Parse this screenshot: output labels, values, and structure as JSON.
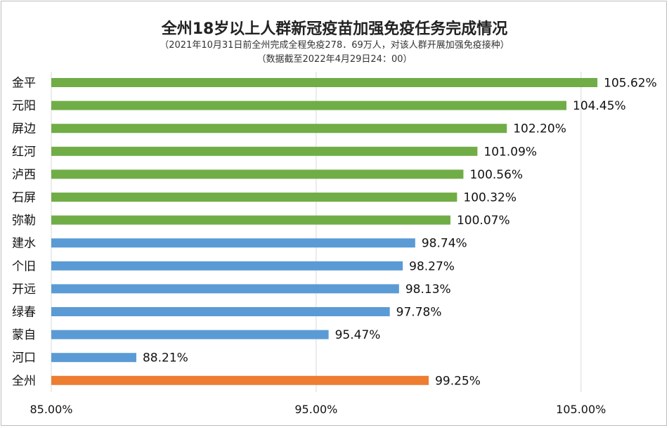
{
  "chart_data": {
    "type": "bar",
    "orientation": "horizontal",
    "title": "全州18岁以上人群新冠疫苗加强免疫任务完成情况",
    "subtitle_lines": [
      "（2021年10月31日前全州完成全程免疫278．69万人，对该人群开展加强免疫接种）",
      "（数据截至2022年4月29日24：00）"
    ],
    "categories": [
      "金平",
      "元阳",
      "屏边",
      "红河",
      "泸西",
      "石屏",
      "弥勒",
      "建水",
      "个旧",
      "开远",
      "绿春",
      "蒙自",
      "河口",
      "全州"
    ],
    "values": [
      105.62,
      104.45,
      102.2,
      101.09,
      100.56,
      100.32,
      100.07,
      98.74,
      98.27,
      98.13,
      97.78,
      95.47,
      88.21,
      99.25
    ],
    "value_labels": [
      "105.62%",
      "104.45%",
      "102.20%",
      "101.09%",
      "100.56%",
      "100.32%",
      "100.07%",
      "98.74%",
      "98.27%",
      "98.13%",
      "97.78%",
      "95.47%",
      "88.21%",
      "99.25%"
    ],
    "xlim": [
      85,
      107.5
    ],
    "x_ticks": [
      85,
      95,
      105
    ],
    "x_tick_labels": [
      "85.00%",
      "95.00%",
      "105.00%"
    ],
    "grid": true,
    "colors": {
      "above_100": "#70ad47",
      "below_100": "#5b9bd5",
      "total": "#ed7d31",
      "gridline": "#d9d9d9"
    }
  }
}
